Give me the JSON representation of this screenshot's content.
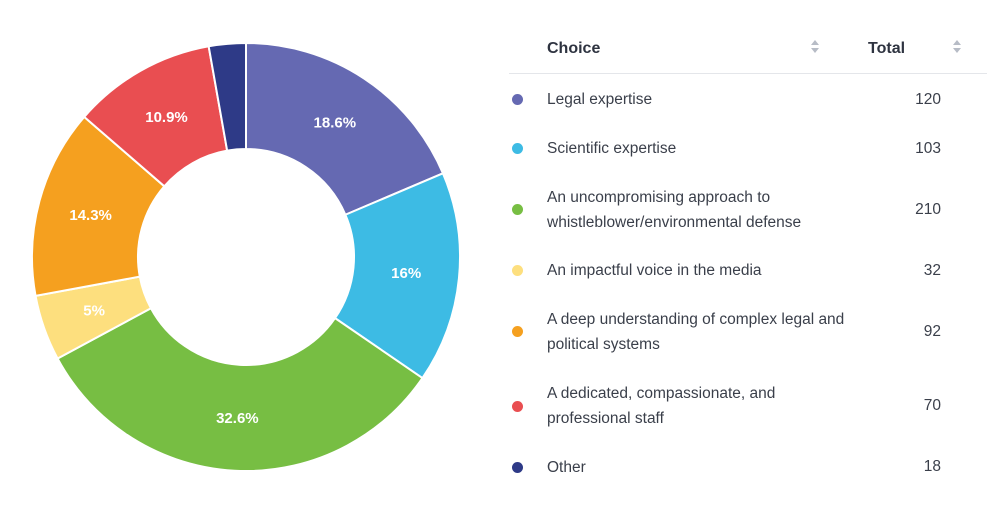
{
  "chart_data": {
    "type": "pie",
    "donut": true,
    "categories": [
      "Legal expertise",
      "Scientific expertise",
      "An uncompromising approach to whistleblower/environmental defense",
      "An impactful voice in the media",
      "A deep understanding of complex legal and political systems",
      "A dedicated, compassionate, and professional staff",
      "Other"
    ],
    "values": [
      120,
      103,
      210,
      32,
      92,
      70,
      18
    ],
    "percent_labels": [
      "18.6%",
      "16%",
      "32.6%",
      "5%",
      "14.3%",
      "10.9%",
      ""
    ],
    "colors": [
      "#6569b2",
      "#3dbbe4",
      "#77be43",
      "#fddf7e",
      "#f5a01f",
      "#e94e51",
      "#2e3a87"
    ]
  },
  "table": {
    "headers": {
      "choice": "Choice",
      "total": "Total"
    },
    "rows": [
      {
        "label": "Legal expertise",
        "total": "120"
      },
      {
        "label": "Scientific expertise",
        "total": "103"
      },
      {
        "label": "An uncompromising approach to whistleblower/environmental defense",
        "total": "210"
      },
      {
        "label": "An impactful voice in the media",
        "total": "32"
      },
      {
        "label": "A deep understanding of complex legal and political systems",
        "total": "92"
      },
      {
        "label": "A dedicated, compassionate, and professional staff",
        "total": "70"
      },
      {
        "label": "Other",
        "total": "18"
      }
    ]
  }
}
